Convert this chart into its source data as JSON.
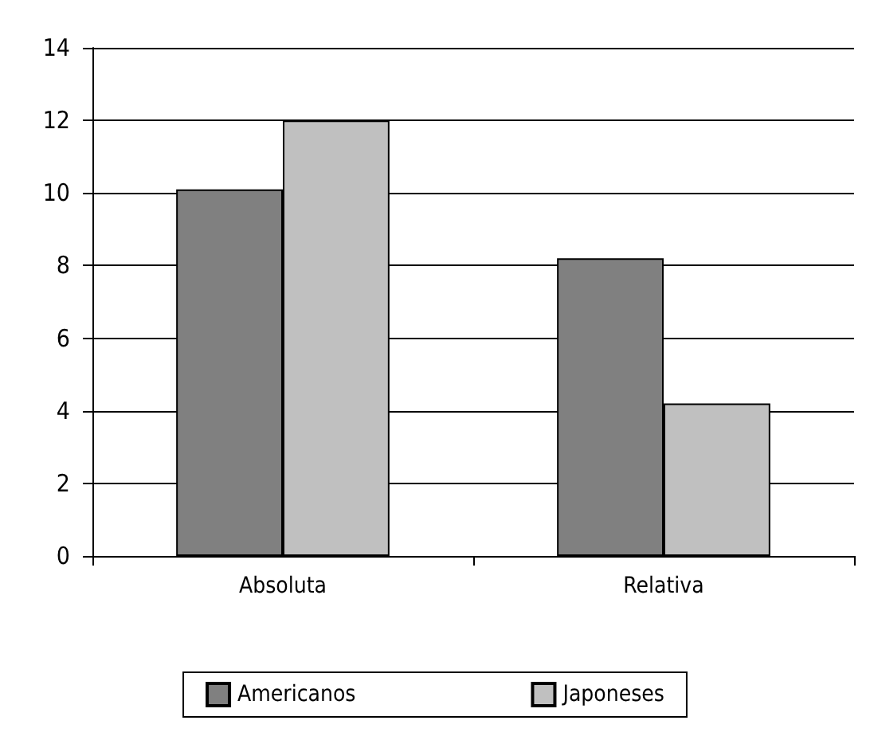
{
  "chart_data": {
    "type": "bar",
    "categories": [
      "Absoluta",
      "Relativa"
    ],
    "series": [
      {
        "name": "Americanos",
        "color": "#808080",
        "values": [
          10.1,
          8.2
        ]
      },
      {
        "name": "Japoneses",
        "color": "#c0c0c0",
        "values": [
          12,
          4.2
        ]
      }
    ],
    "ylim": [
      0,
      14
    ],
    "yticks": [
      0,
      2,
      4,
      6,
      8,
      10,
      12,
      14
    ],
    "grid": "y",
    "legend": "bottom"
  }
}
